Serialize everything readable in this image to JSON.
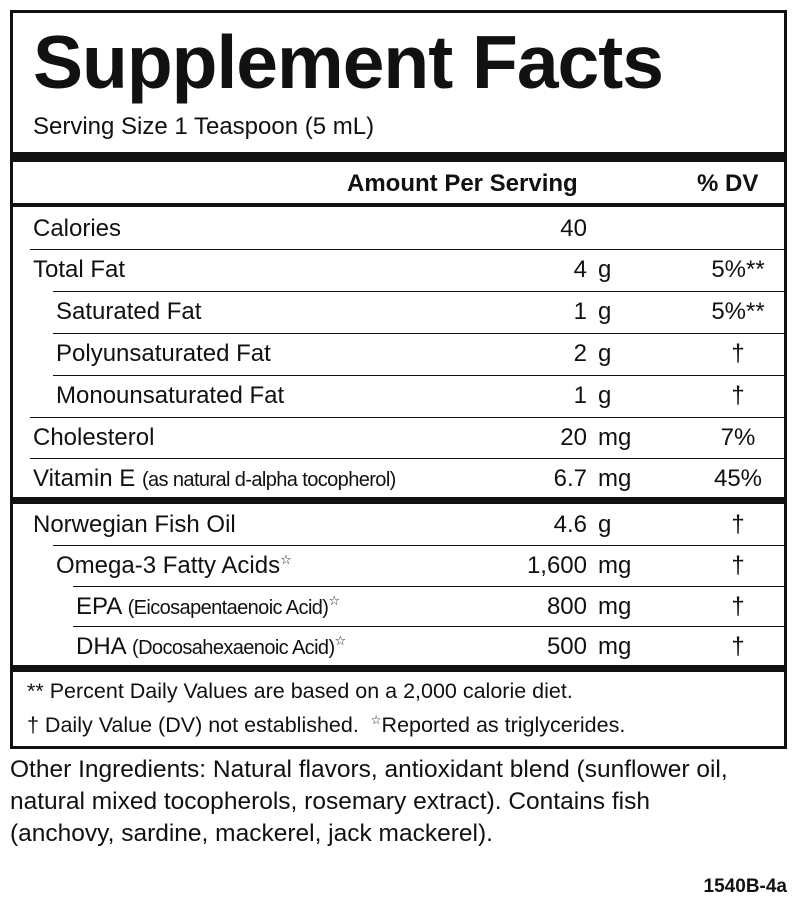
{
  "title": "Supplement Facts",
  "serving": "Serving Size 1 Teaspoon (5 mL)",
  "header": {
    "amount": "Amount Per Serving",
    "dv": "% DV"
  },
  "rows": [
    {
      "name": "Calories",
      "amount": "40"
    },
    {
      "name": "Total Fat",
      "amount": "4",
      "unit": "g",
      "dv": "5%**"
    },
    {
      "name": "Saturated Fat",
      "amount": "1",
      "unit": "g",
      "dv": "5%**"
    },
    {
      "name": "Polyunsaturated Fat",
      "amount": "2",
      "unit": "g",
      "dv": "†"
    },
    {
      "name": "Monounsaturated Fat",
      "amount": "1",
      "unit": "g",
      "dv": "†"
    },
    {
      "name": "Cholesterol",
      "amount": "20",
      "unit": "mg",
      "dv": "7%"
    },
    {
      "name": "Vitamin E",
      "note": "(as natural d-alpha tocopherol)",
      "amount": "6.7",
      "unit": "mg",
      "dv": "45%"
    },
    {
      "name": "Norwegian Fish Oil",
      "amount": "4.6",
      "unit": "g",
      "dv": "†"
    },
    {
      "name": "Omega-3 Fatty Acids",
      "star": "☆",
      "amount": "1,600",
      "unit": "mg",
      "dv": "†"
    },
    {
      "name": "EPA",
      "note": "(Eicosapentaenoic Acid)",
      "star": "☆",
      "amount": "800",
      "unit": "mg",
      "dv": "†"
    },
    {
      "name": "DHA",
      "note": "(Docosahexaenoic Acid)",
      "star": "☆",
      "amount": "500",
      "unit": "mg",
      "dv": "†"
    }
  ],
  "footnotes": [
    "** Percent Daily Values are based on a 2,000 calorie diet.",
    "† Daily Value (DV) not established.",
    "☆",
    "Reported as triglycerides."
  ],
  "other_ingredients": "Other Ingredients: Natural flavors, antioxidant blend (sunflower oil, natural mixed tocopherols, rosemary extract). Contains fish (anchovy, sardine, mackerel, jack mackerel).",
  "code": "1540B-4a"
}
